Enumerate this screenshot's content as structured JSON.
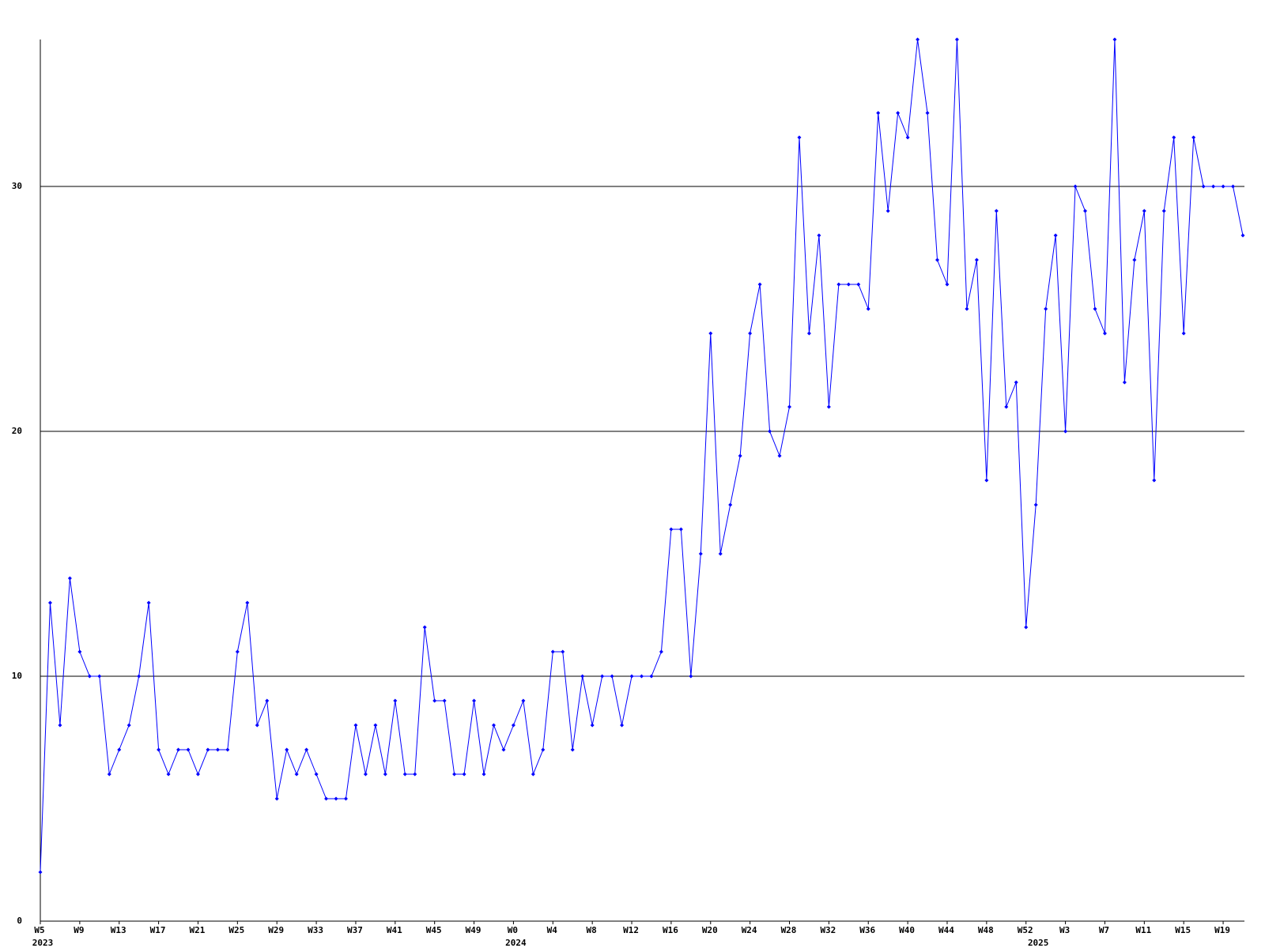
{
  "chart_data": {
    "type": "line",
    "categories": [
      "W5",
      null,
      null,
      null,
      "W9",
      null,
      null,
      null,
      "W13",
      null,
      null,
      null,
      "W17",
      null,
      null,
      null,
      "W21",
      null,
      null,
      null,
      "W25",
      null,
      null,
      null,
      "W29",
      null,
      null,
      null,
      "W33",
      null,
      null,
      null,
      "W37",
      null,
      null,
      null,
      "W41",
      null,
      null,
      null,
      "W45",
      null,
      null,
      null,
      "W49",
      null,
      null,
      null,
      "W0",
      null,
      null,
      null,
      "W4",
      null,
      null,
      null,
      "W8",
      null,
      null,
      null,
      "W12",
      null,
      null,
      null,
      "W16",
      null,
      null,
      null,
      "W20",
      null,
      null,
      null,
      "W24",
      null,
      null,
      null,
      "W28",
      null,
      null,
      null,
      "W32",
      null,
      null,
      null,
      "W36",
      null,
      null,
      null,
      "W40",
      null,
      null,
      null,
      "W44",
      null,
      null,
      null,
      "W48",
      null,
      null,
      null,
      "W52",
      null,
      null,
      null,
      "W3",
      null,
      null,
      null,
      "W7",
      null,
      null,
      null,
      "W11",
      null,
      null,
      null,
      "W15",
      null,
      null,
      null,
      "W19",
      null,
      null
    ],
    "years": [
      {
        "category": 0,
        "label": "2023"
      },
      {
        "category": 48,
        "label": "2024"
      },
      {
        "category": 101,
        "label": "2025"
      }
    ],
    "series": [
      {
        "color": "#0000ff",
        "values": [
          2,
          13,
          8,
          14,
          11,
          10,
          10,
          6,
          7,
          8,
          10,
          13,
          7,
          6,
          7,
          7,
          6,
          7,
          7,
          7,
          11,
          13,
          8,
          9,
          5,
          7,
          6,
          7,
          6,
          5,
          5,
          5,
          8,
          6,
          8,
          6,
          9,
          6,
          6,
          12,
          9,
          9,
          6,
          6,
          9,
          6,
          8,
          7,
          8,
          9,
          6,
          7,
          11,
          11,
          7,
          10,
          8,
          10,
          10,
          8,
          10,
          10,
          10,
          11,
          16,
          16,
          10,
          15,
          24,
          15,
          17,
          19,
          24,
          26,
          20,
          19,
          21,
          32,
          24,
          28,
          21,
          26,
          26,
          26,
          25,
          33,
          29,
          33,
          32,
          36,
          33,
          27,
          26,
          36,
          25,
          27,
          18,
          29,
          21,
          22,
          12,
          17,
          25,
          28,
          20,
          30,
          29,
          25,
          24,
          36,
          22,
          27,
          29,
          18,
          29,
          32,
          24,
          32,
          30,
          30,
          30,
          30,
          28
        ]
      }
    ],
    "ylim": [
      0,
      36
    ],
    "yticks": [
      0,
      10,
      20,
      30
    ],
    "grid": true
  }
}
